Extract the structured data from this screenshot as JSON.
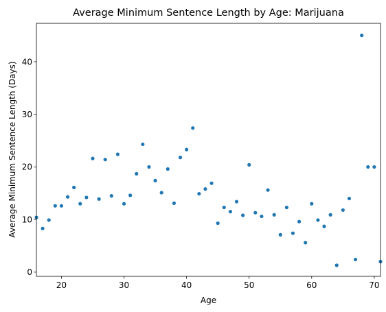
{
  "chart_data": {
    "type": "scatter",
    "title": "Average Minimum Sentence Length by Age: Marijuana",
    "xlabel": "Age",
    "ylabel": "Average Minimum Sentence Length (Days)",
    "xlim": [
      16,
      71
    ],
    "ylim": [
      -0.8,
      47.3
    ],
    "xticks": [
      20,
      30,
      40,
      50,
      60,
      70
    ],
    "yticks": [
      0,
      10,
      20,
      30,
      40
    ],
    "grid": false,
    "legend": "none",
    "marker_color": "#1f77b4",
    "points": [
      {
        "x": 16,
        "y": 10.4
      },
      {
        "x": 17,
        "y": 8.3
      },
      {
        "x": 18,
        "y": 9.9
      },
      {
        "x": 19,
        "y": 12.6
      },
      {
        "x": 20,
        "y": 12.6
      },
      {
        "x": 21,
        "y": 14.3
      },
      {
        "x": 22,
        "y": 16.1
      },
      {
        "x": 23,
        "y": 13.0
      },
      {
        "x": 24,
        "y": 14.2
      },
      {
        "x": 25,
        "y": 21.6
      },
      {
        "x": 26,
        "y": 13.9
      },
      {
        "x": 27,
        "y": 21.4
      },
      {
        "x": 28,
        "y": 14.5
      },
      {
        "x": 29,
        "y": 22.4
      },
      {
        "x": 30,
        "y": 13.0
      },
      {
        "x": 31,
        "y": 14.6
      },
      {
        "x": 32,
        "y": 18.7
      },
      {
        "x": 33,
        "y": 24.3
      },
      {
        "x": 34,
        "y": 20.0
      },
      {
        "x": 35,
        "y": 17.4
      },
      {
        "x": 36,
        "y": 15.1
      },
      {
        "x": 37,
        "y": 19.6
      },
      {
        "x": 38,
        "y": 13.1
      },
      {
        "x": 39,
        "y": 21.8
      },
      {
        "x": 40,
        "y": 23.3
      },
      {
        "x": 41,
        "y": 27.4
      },
      {
        "x": 42,
        "y": 14.9
      },
      {
        "x": 43,
        "y": 15.8
      },
      {
        "x": 44,
        "y": 16.9
      },
      {
        "x": 45,
        "y": 9.3
      },
      {
        "x": 46,
        "y": 12.3
      },
      {
        "x": 47,
        "y": 11.5
      },
      {
        "x": 48,
        "y": 13.4
      },
      {
        "x": 49,
        "y": 10.8
      },
      {
        "x": 50,
        "y": 20.4
      },
      {
        "x": 51,
        "y": 11.3
      },
      {
        "x": 52,
        "y": 10.6
      },
      {
        "x": 53,
        "y": 15.6
      },
      {
        "x": 54,
        "y": 10.9
      },
      {
        "x": 55,
        "y": 7.1
      },
      {
        "x": 56,
        "y": 12.3
      },
      {
        "x": 57,
        "y": 7.4
      },
      {
        "x": 58,
        "y": 9.6
      },
      {
        "x": 59,
        "y": 5.6
      },
      {
        "x": 60,
        "y": 13.0
      },
      {
        "x": 61,
        "y": 9.9
      },
      {
        "x": 62,
        "y": 8.7
      },
      {
        "x": 63,
        "y": 10.9
      },
      {
        "x": 64,
        "y": 1.3
      },
      {
        "x": 65,
        "y": 11.8
      },
      {
        "x": 66,
        "y": 14.0
      },
      {
        "x": 67,
        "y": 2.4
      },
      {
        "x": 68,
        "y": 45.0
      },
      {
        "x": 69,
        "y": 20.0
      },
      {
        "x": 70,
        "y": 20.0
      },
      {
        "x": 71,
        "y": 2.0
      }
    ]
  }
}
